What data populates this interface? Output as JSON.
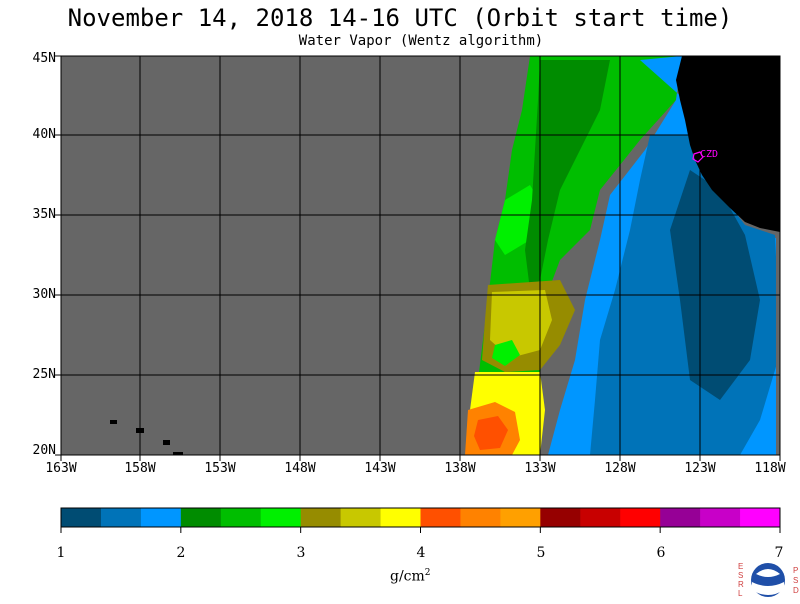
{
  "header": {
    "title": "November 14, 2018  14-16 UTC  (Orbit start time)",
    "subtitle": "Water Vapor (Wentz algorithm)"
  },
  "map": {
    "lat_labels": [
      "45N",
      "40N",
      "35N",
      "30N",
      "25N",
      "20N"
    ],
    "lon_labels": [
      "163W",
      "158W",
      "153W",
      "148W",
      "143W",
      "138W",
      "133W",
      "128W",
      "123W",
      "118W"
    ],
    "station_label": "CZD",
    "colors": {
      "no_data": "#666666",
      "land": "#000000",
      "grid": "#000000",
      "station": "#ff00ff"
    }
  },
  "colorbar": {
    "tick_labels": [
      "1",
      "2",
      "3",
      "4",
      "5",
      "6",
      "7"
    ],
    "unit_base": "g/cm",
    "unit_exponent": "2",
    "colors": [
      "#004c73",
      "#0073b8",
      "#0096ff",
      "#008c00",
      "#00be00",
      "#00f000",
      "#968c00",
      "#c8c800",
      "#ffff00",
      "#ff5000",
      "#ff8200",
      "#ffa000",
      "#960000",
      "#c80000",
      "#ff0000",
      "#960096",
      "#c800c8",
      "#ff00ff"
    ]
  },
  "logo": {
    "left_letters": [
      "E",
      "S",
      "R",
      "L"
    ],
    "right_letters": [
      "P",
      "S",
      "D"
    ],
    "agency": "NOAA"
  }
}
